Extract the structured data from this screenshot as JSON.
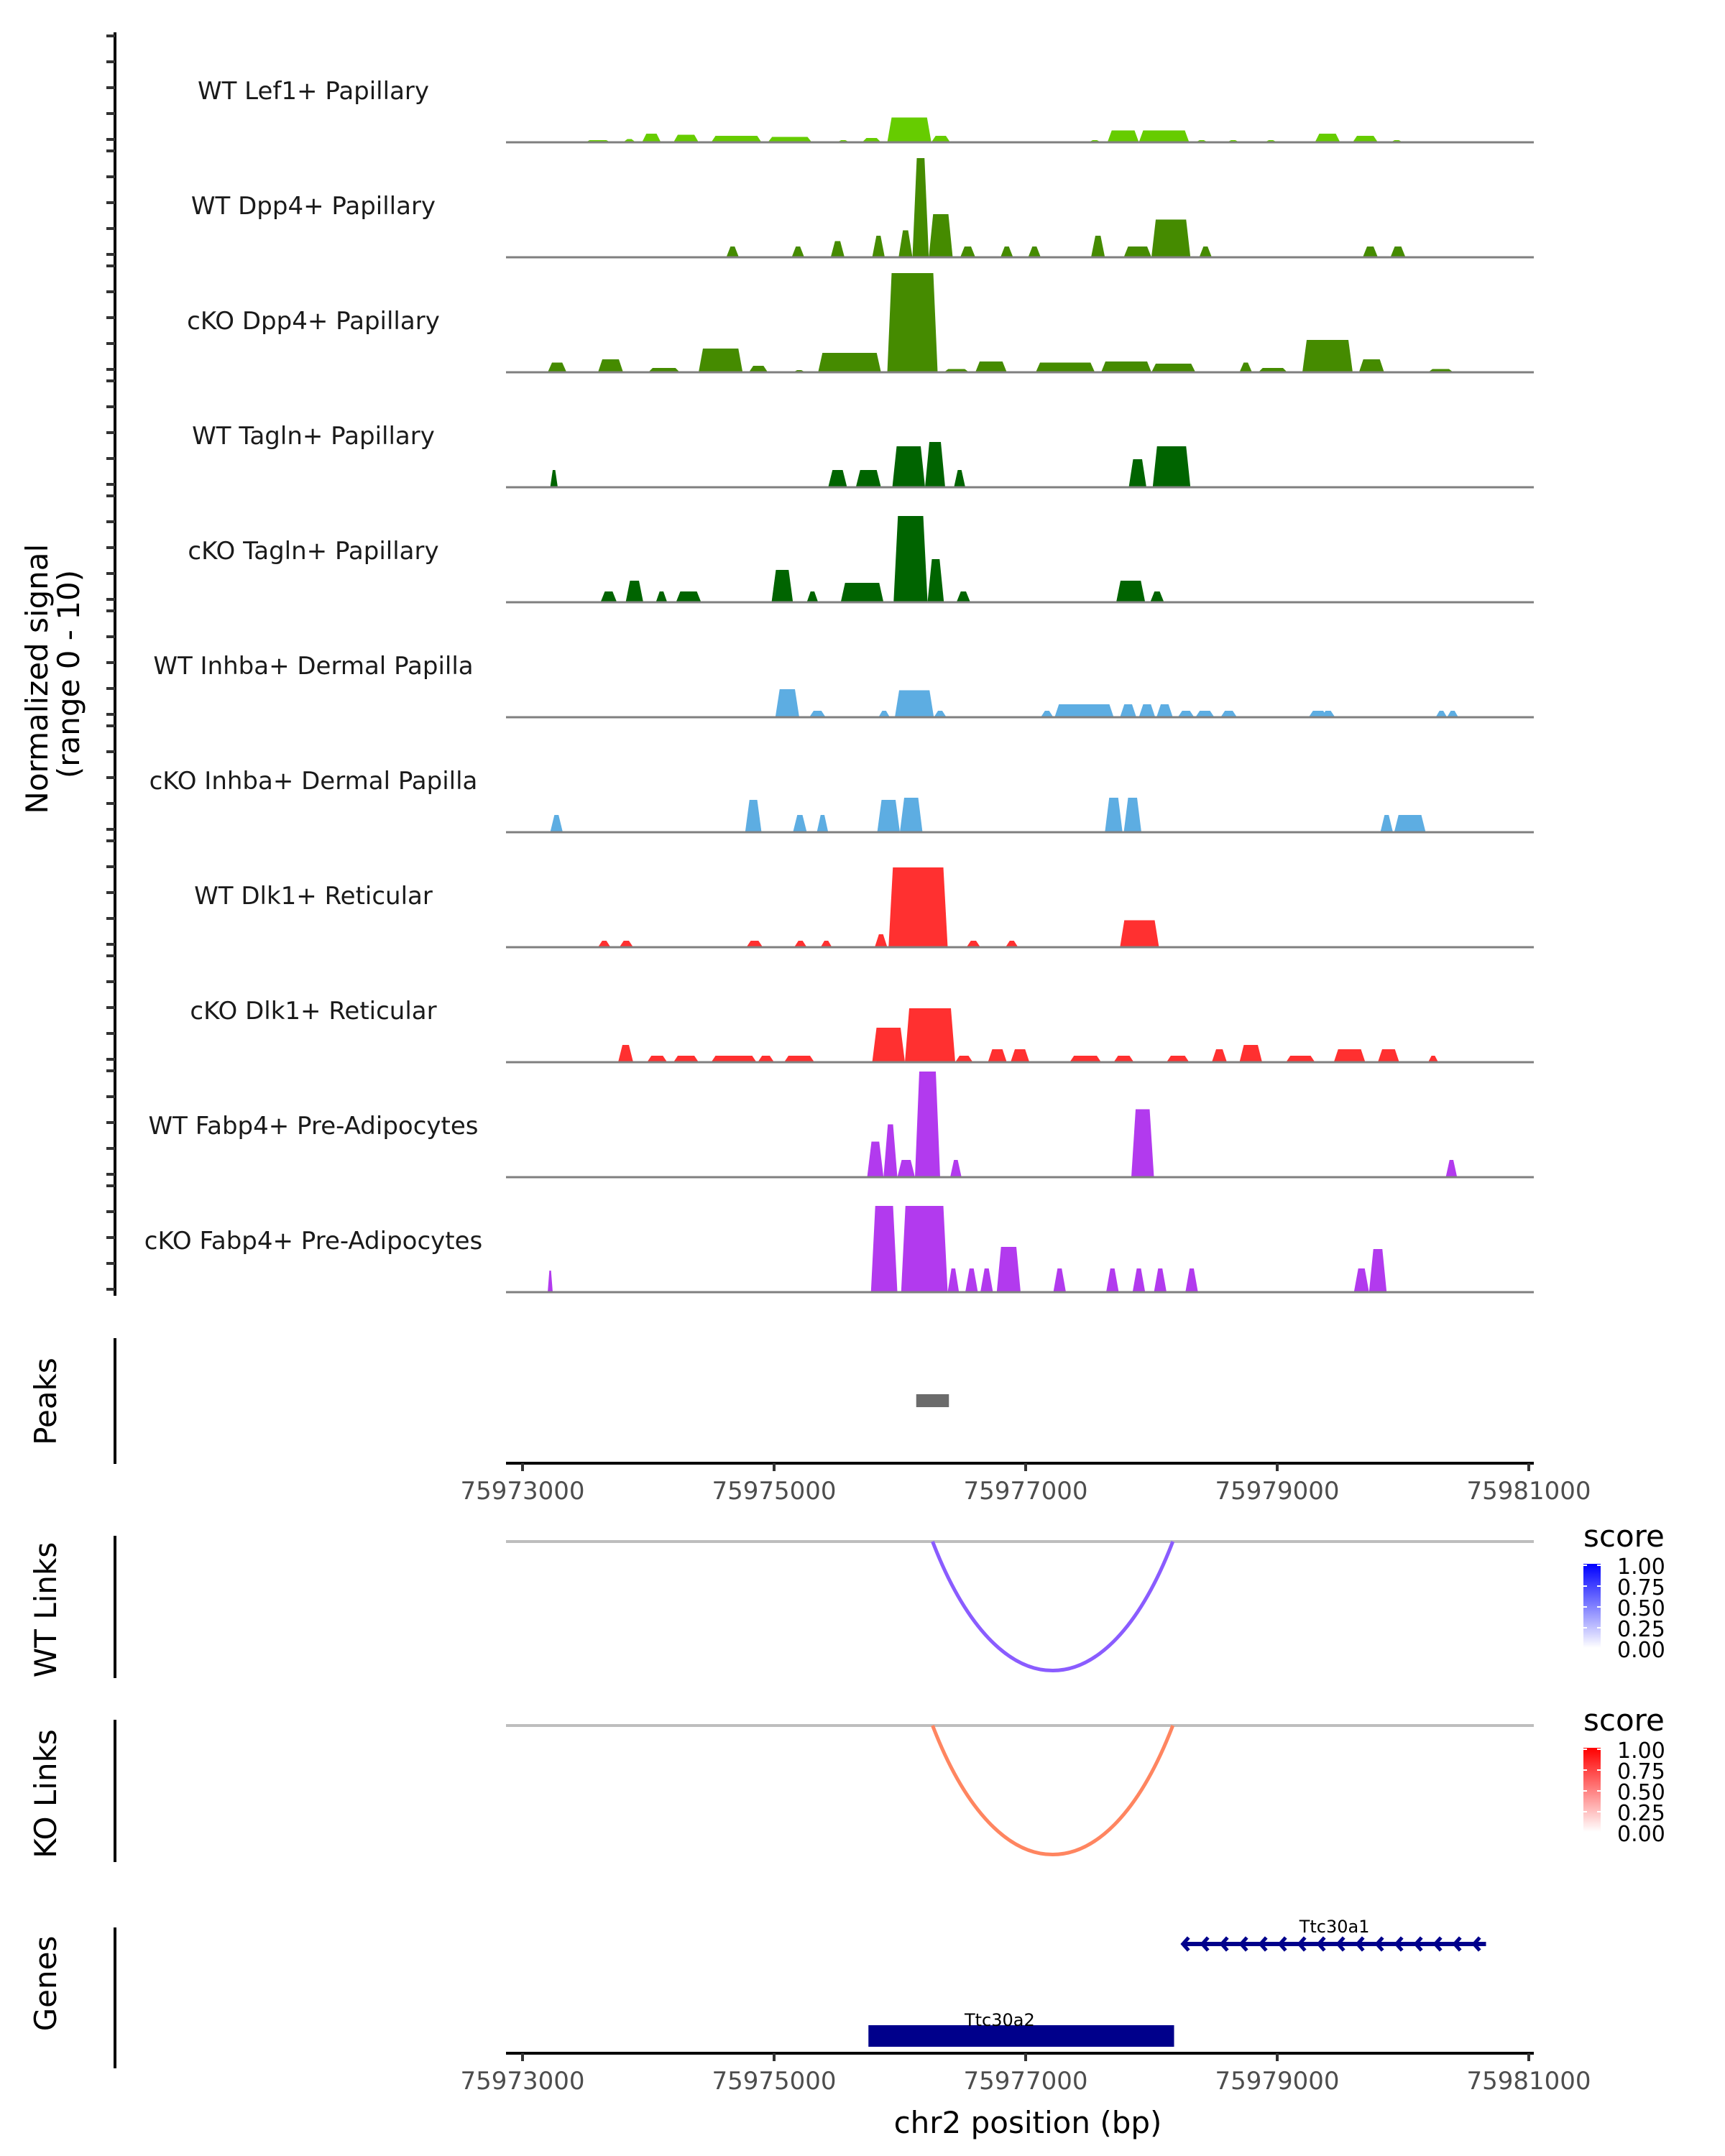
{
  "chart_data": {
    "type": "area",
    "title": "",
    "xlabel": "chr2 position (bp)",
    "ylabel": "Normalized signal\n(range 0 - 10)",
    "ylabel_lines": [
      "Normalized signal",
      "(range 0 - 10)"
    ],
    "ylim": [
      0,
      10
    ],
    "xlim": [
      75972870,
      75981040
    ],
    "x_ticks": [
      75973000,
      75975000,
      75977000,
      75979000,
      75981000
    ],
    "x_tick_labels": [
      "75973000",
      "75975000",
      "75977000",
      "75979000",
      "75981000"
    ],
    "coverage_tracks": [
      {
        "name": "WT Lef1+ Papillary",
        "color": "#66cc00",
        "segments": [
          [
            73500,
            73700,
            0.2
          ],
          [
            73800,
            73900,
            0.3
          ],
          [
            73950,
            74100,
            0.8
          ],
          [
            74200,
            74400,
            0.7
          ],
          [
            74500,
            74900,
            0.6
          ],
          [
            74950,
            75300,
            0.5
          ],
          [
            75500,
            75600,
            0.2
          ],
          [
            75700,
            75850,
            0.4
          ],
          [
            75900,
            76250,
            2.3
          ],
          [
            76250,
            76400,
            0.6
          ],
          [
            77500,
            77600,
            0.2
          ],
          [
            77650,
            77900,
            1.1
          ],
          [
            77900,
            78300,
            1.1
          ],
          [
            78350,
            78450,
            0.2
          ],
          [
            78600,
            78700,
            0.2
          ],
          [
            78900,
            79000,
            0.2
          ],
          [
            79300,
            79500,
            0.8
          ],
          [
            79600,
            79800,
            0.6
          ],
          [
            79900,
            80000,
            0.2
          ]
        ]
      },
      {
        "name": "WT Dpp4+ Papillary",
        "color": "#458b00",
        "segments": [
          [
            74620,
            74720,
            1.0
          ],
          [
            75140,
            75240,
            1.0
          ],
          [
            75450,
            75560,
            1.5
          ],
          [
            75780,
            75880,
            2.0
          ],
          [
            75990,
            76100,
            2.5
          ],
          [
            76100,
            76230,
            9.2
          ],
          [
            76230,
            76420,
            4.0
          ],
          [
            76480,
            76600,
            1.0
          ],
          [
            76800,
            76900,
            1.0
          ],
          [
            77020,
            77120,
            1.0
          ],
          [
            77520,
            77630,
            2.0
          ],
          [
            77780,
            78000,
            1.0
          ],
          [
            78000,
            78310,
            3.5
          ],
          [
            78380,
            78480,
            1.0
          ],
          [
            79680,
            79800,
            1.0
          ],
          [
            79900,
            80020,
            1.0
          ]
        ]
      },
      {
        "name": "cKO Dpp4+ Papillary",
        "color": "#458b00",
        "segments": [
          [
            73200,
            73350,
            0.9
          ],
          [
            73600,
            73800,
            1.2
          ],
          [
            74000,
            74250,
            0.4
          ],
          [
            74400,
            74750,
            2.2
          ],
          [
            74800,
            74950,
            0.6
          ],
          [
            75150,
            75250,
            0.2
          ],
          [
            75350,
            75850,
            1.8
          ],
          [
            75900,
            76300,
            9.2
          ],
          [
            76350,
            76550,
            0.3
          ],
          [
            76600,
            76850,
            1.0
          ],
          [
            77080,
            77550,
            0.9
          ],
          [
            77600,
            78000,
            1.0
          ],
          [
            78000,
            78350,
            0.8
          ],
          [
            78700,
            78800,
            0.9
          ],
          [
            78850,
            79080,
            0.4
          ],
          [
            79200,
            79600,
            3.0
          ],
          [
            79650,
            79850,
            1.2
          ],
          [
            80200,
            80400,
            0.3
          ]
        ]
      },
      {
        "name": "WT Tagln+ Papillary",
        "color": "#006400",
        "segments": [
          [
            73220,
            73280,
            1.6
          ],
          [
            75430,
            75580,
            1.6
          ],
          [
            75650,
            75850,
            1.6
          ],
          [
            75940,
            76200,
            3.8
          ],
          [
            76200,
            76360,
            4.2
          ],
          [
            76430,
            76520,
            1.6
          ],
          [
            77820,
            77960,
            2.6
          ],
          [
            78010,
            78310,
            3.8
          ]
        ]
      },
      {
        "name": "cKO Tagln+ Papillary",
        "color": "#006400",
        "segments": [
          [
            73620,
            73750,
            1.0
          ],
          [
            73820,
            73960,
            2.0
          ],
          [
            74060,
            74150,
            1.0
          ],
          [
            74220,
            74420,
            1.0
          ],
          [
            74980,
            75150,
            3.0
          ],
          [
            75260,
            75350,
            1.0
          ],
          [
            75530,
            75870,
            1.8
          ],
          [
            75950,
            76220,
            8.0
          ],
          [
            76220,
            76350,
            4.0
          ],
          [
            76450,
            76560,
            1.0
          ],
          [
            77720,
            77950,
            2.0
          ],
          [
            77990,
            78100,
            1.0
          ]
        ]
      },
      {
        "name": "WT Inhba+ Dermal Papilla",
        "color": "#5dade2",
        "segments": [
          [
            75010,
            75200,
            2.6
          ],
          [
            75280,
            75410,
            0.6
          ],
          [
            75830,
            75920,
            0.6
          ],
          [
            75960,
            76270,
            2.5
          ],
          [
            76270,
            76370,
            0.6
          ],
          [
            77120,
            77220,
            0.6
          ],
          [
            77230,
            77700,
            1.2
          ],
          [
            77750,
            77880,
            1.2
          ],
          [
            77900,
            78030,
            1.2
          ],
          [
            78040,
            78170,
            1.2
          ],
          [
            78210,
            78340,
            0.6
          ],
          [
            78350,
            78500,
            0.6
          ],
          [
            78550,
            78680,
            0.6
          ],
          [
            79250,
            79400,
            0.6
          ],
          [
            79350,
            79460,
            0.6
          ],
          [
            80260,
            80350,
            0.6
          ],
          [
            80350,
            80440,
            0.6
          ]
        ]
      },
      {
        "name": "cKO Inhba+ Dermal Papilla",
        "color": "#5dade2",
        "segments": [
          [
            73220,
            73320,
            1.6
          ],
          [
            74770,
            74900,
            3.0
          ],
          [
            75150,
            75260,
            1.6
          ],
          [
            75340,
            75430,
            1.6
          ],
          [
            75820,
            76000,
            3.0
          ],
          [
            76000,
            76180,
            3.2
          ],
          [
            77630,
            77770,
            3.2
          ],
          [
            77780,
            77920,
            3.2
          ],
          [
            79820,
            79920,
            1.6
          ],
          [
            79930,
            80180,
            1.6
          ]
        ]
      },
      {
        "name": "WT Dlk1+ Reticular",
        "color": "#ff3030",
        "segments": [
          [
            73600,
            73700,
            0.6
          ],
          [
            73770,
            73880,
            0.6
          ],
          [
            74780,
            74910,
            0.6
          ],
          [
            75160,
            75260,
            0.6
          ],
          [
            75370,
            75460,
            0.6
          ],
          [
            75800,
            75900,
            1.2
          ],
          [
            75910,
            76380,
            7.4
          ],
          [
            76530,
            76640,
            0.6
          ],
          [
            76840,
            76940,
            0.6
          ],
          [
            77750,
            78060,
            2.5
          ]
        ]
      },
      {
        "name": "cKO Dlk1+ Reticular",
        "color": "#ff3030",
        "segments": [
          [
            73760,
            73880,
            1.6
          ],
          [
            73990,
            74150,
            0.6
          ],
          [
            74200,
            74400,
            0.6
          ],
          [
            74500,
            74860,
            0.6
          ],
          [
            74870,
            75000,
            0.6
          ],
          [
            75080,
            75320,
            0.6
          ],
          [
            75780,
            76040,
            3.2
          ],
          [
            76040,
            76440,
            5.0
          ],
          [
            76440,
            76580,
            0.6
          ],
          [
            76700,
            76850,
            1.2
          ],
          [
            76880,
            77030,
            1.2
          ],
          [
            77350,
            77600,
            0.6
          ],
          [
            77700,
            77860,
            0.6
          ],
          [
            78120,
            78300,
            0.6
          ],
          [
            78480,
            78600,
            1.2
          ],
          [
            78700,
            78880,
            1.6
          ],
          [
            79070,
            79300,
            0.6
          ],
          [
            79450,
            79700,
            1.2
          ],
          [
            79800,
            79970,
            1.2
          ],
          [
            80200,
            80280,
            0.6
          ]
        ]
      },
      {
        "name": "WT Fabp4+ Pre-Adipocytes",
        "color": "#b23aee",
        "segments": [
          [
            75740,
            75870,
            3.3
          ],
          [
            75870,
            75980,
            4.9
          ],
          [
            75980,
            76120,
            1.6
          ],
          [
            76120,
            76320,
            9.8
          ],
          [
            76400,
            76490,
            1.6
          ],
          [
            77840,
            78020,
            6.3
          ],
          [
            80340,
            80430,
            1.6
          ]
        ]
      },
      {
        "name": "cKO Fabp4+ Pre-Adipocytes",
        "color": "#b23aee",
        "segments": [
          [
            73200,
            73240,
            2.0
          ],
          [
            75770,
            75980,
            8.0
          ],
          [
            76010,
            76380,
            8.0
          ],
          [
            76380,
            76470,
            2.2
          ],
          [
            76520,
            76620,
            2.2
          ],
          [
            76640,
            76740,
            2.2
          ],
          [
            76770,
            76960,
            4.2
          ],
          [
            77220,
            77320,
            2.2
          ],
          [
            77640,
            77740,
            2.2
          ],
          [
            77850,
            77950,
            2.2
          ],
          [
            78020,
            78120,
            2.2
          ],
          [
            78270,
            78370,
            2.2
          ],
          [
            79610,
            79730,
            2.2
          ],
          [
            79730,
            79870,
            4.0
          ]
        ]
      }
    ],
    "peaks": {
      "label": "Peaks",
      "color": "#6b6b6b",
      "regions": [
        [
          75976130,
          75976390
        ]
      ]
    },
    "link_tracks": [
      {
        "label": "WT Links",
        "color": "#8a5cff",
        "links": [
          {
            "start": 75976260,
            "end": 75978170,
            "score": 0.55
          }
        ],
        "legend": {
          "title": "score",
          "low_color": "#ffffff",
          "high_color": "#0000ff",
          "ticks": [
            "1.00",
            "0.75",
            "0.50",
            "0.25",
            "0.00"
          ]
        }
      },
      {
        "label": "KO Links",
        "color": "#ff8560",
        "links": [
          {
            "start": 75976260,
            "end": 75978170,
            "score": 0.55
          }
        ],
        "legend": {
          "title": "score",
          "low_color": "#ffffff",
          "high_color": "#ff0000",
          "ticks": [
            "1.00",
            "0.75",
            "0.50",
            "0.25",
            "0.00"
          ]
        }
      }
    ],
    "genes": {
      "label": "Genes",
      "color": "#00008b",
      "items": [
        {
          "name": "Ttc30a1",
          "start": 75978250,
          "end": 75980660,
          "strand": "-",
          "type": "intron-line"
        },
        {
          "name": "Ttc30a2",
          "start": 75975750,
          "end": 75978180,
          "strand": "+",
          "type": "exon-block"
        }
      ]
    }
  }
}
